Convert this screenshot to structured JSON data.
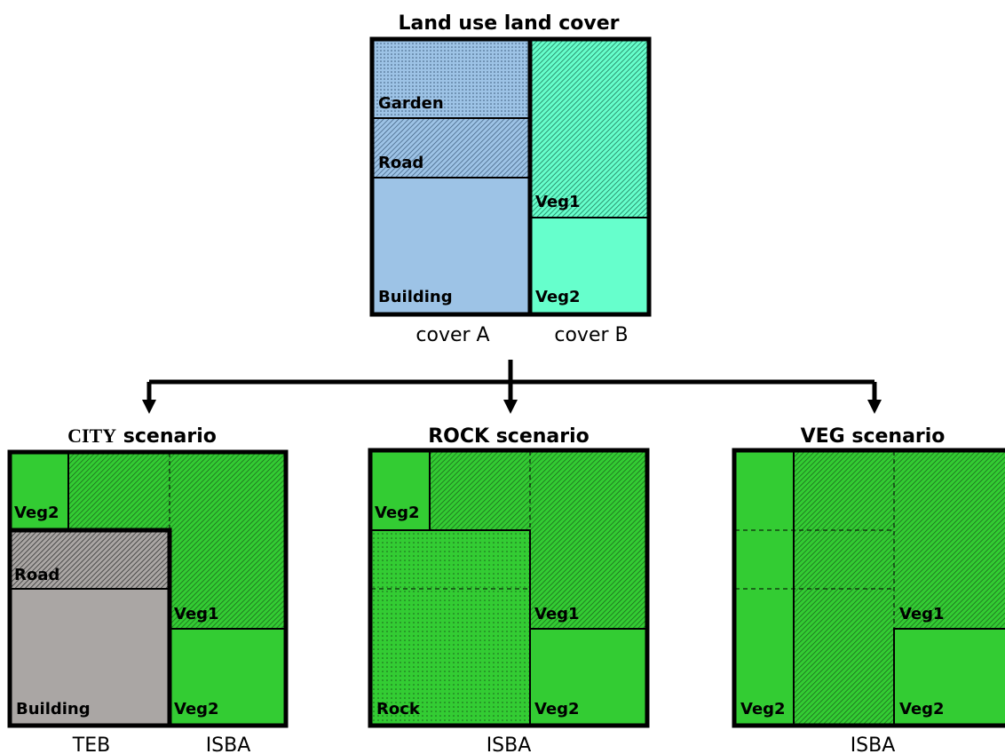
{
  "top": {
    "title": "Land use land cover",
    "labels": [
      "Garden",
      "Road",
      "Building",
      "Veg1",
      "Veg2"
    ],
    "captions": [
      "cover A",
      "cover B"
    ]
  },
  "scenarios": [
    {
      "title": [
        "CITY",
        "scenario"
      ],
      "labels": [
        "Veg2",
        "Road",
        "Veg1",
        "Building",
        "Veg2"
      ],
      "captions": [
        "TEB",
        "ISBA"
      ]
    },
    {
      "title": "ROCK scenario",
      "labels": [
        "Veg2",
        "Veg1",
        "Rock",
        "Veg2"
      ],
      "captions": [
        "ISBA"
      ]
    },
    {
      "title": "VEG scenario",
      "labels": [
        "Veg1",
        "Veg2",
        "Veg2"
      ],
      "captions": [
        "ISBA"
      ]
    }
  ]
}
